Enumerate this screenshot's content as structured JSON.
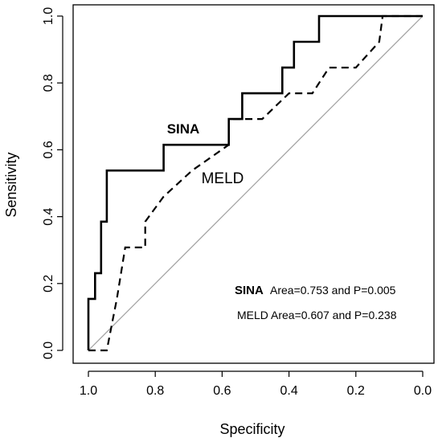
{
  "chart_data": {
    "type": "line",
    "xlabel": "Specificity",
    "ylabel": "Sensitivity",
    "xlim": [
      1.0,
      0.0
    ],
    "ylim": [
      0.0,
      1.0
    ],
    "x_reversed": true,
    "xticks": [
      "1.0",
      "0.8",
      "0.6",
      "0.4",
      "0.2",
      "0.0"
    ],
    "yticks": [
      "0.0",
      "0.2",
      "0.4",
      "0.6",
      "0.8",
      "1.0"
    ],
    "grid": false,
    "series": [
      {
        "name": "SINA",
        "style": "solid",
        "color": "#000000",
        "points": [
          [
            1.0,
            0.0
          ],
          [
            1.0,
            0.154
          ],
          [
            0.98,
            0.154
          ],
          [
            0.98,
            0.231
          ],
          [
            0.962,
            0.231
          ],
          [
            0.962,
            0.385
          ],
          [
            0.945,
            0.385
          ],
          [
            0.945,
            0.538
          ],
          [
            0.775,
            0.538
          ],
          [
            0.775,
            0.615
          ],
          [
            0.58,
            0.615
          ],
          [
            0.58,
            0.692
          ],
          [
            0.54,
            0.692
          ],
          [
            0.54,
            0.769
          ],
          [
            0.42,
            0.769
          ],
          [
            0.42,
            0.846
          ],
          [
            0.385,
            0.846
          ],
          [
            0.385,
            0.923
          ],
          [
            0.31,
            0.923
          ],
          [
            0.31,
            1.0
          ],
          [
            0.0,
            1.0
          ]
        ]
      },
      {
        "name": "MELD",
        "style": "dashed",
        "color": "#000000",
        "points": [
          [
            1.0,
            0.0
          ],
          [
            0.945,
            0.0
          ],
          [
            0.93,
            0.077
          ],
          [
            0.915,
            0.154
          ],
          [
            0.89,
            0.308
          ],
          [
            0.83,
            0.308
          ],
          [
            0.83,
            0.385
          ],
          [
            0.775,
            0.46
          ],
          [
            0.69,
            0.538
          ],
          [
            0.58,
            0.615
          ],
          [
            0.58,
            0.692
          ],
          [
            0.48,
            0.692
          ],
          [
            0.4,
            0.769
          ],
          [
            0.33,
            0.769
          ],
          [
            0.28,
            0.846
          ],
          [
            0.2,
            0.846
          ],
          [
            0.13,
            0.923
          ],
          [
            0.12,
            1.0
          ],
          [
            0.0,
            1.0
          ]
        ]
      }
    ],
    "reference_line": {
      "from": [
        1.0,
        0.0
      ],
      "to": [
        0.0,
        1.0
      ],
      "color": "#a0a0a0"
    },
    "labels": {
      "sina": "SINA",
      "meld": "MELD"
    },
    "annotations": {
      "sina_prefix": "SINA",
      "sina_text": "Area=0.753 and P=0.005",
      "meld_text": "MELD Area=0.607 and P=0.238"
    }
  }
}
